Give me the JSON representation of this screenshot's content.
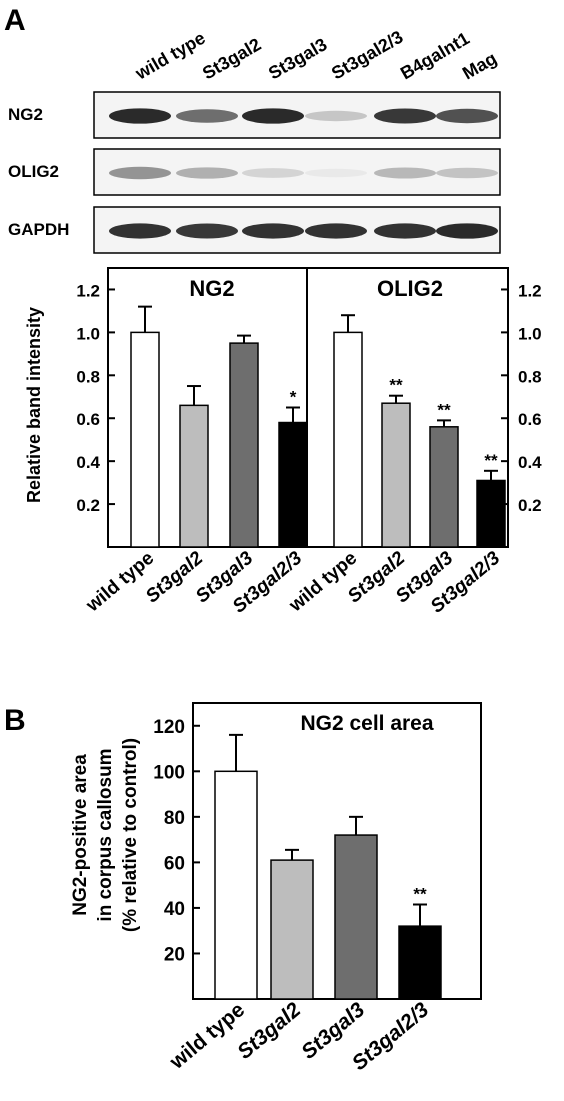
{
  "panel_a": {
    "label": "A",
    "blot": {
      "lanes": [
        "wild type",
        "St3gal2",
        "St3gal3",
        "St3gal2/3",
        "B4galnt1",
        "Mag"
      ],
      "rows": [
        {
          "label": "NG2",
          "intensity": [
            0.92,
            0.7,
            0.92,
            0.3,
            0.88,
            0.8
          ]
        },
        {
          "label": "OLIG2",
          "intensity": [
            0.55,
            0.42,
            0.22,
            0.05,
            0.38,
            0.32
          ]
        },
        {
          "label": "GAPDH",
          "intensity": [
            0.9,
            0.88,
            0.9,
            0.9,
            0.9,
            0.92
          ]
        }
      ]
    }
  },
  "panel_b": {
    "label": "B",
    "colors": {
      "wild type": "#ffffff",
      "St3gal2": "#bdbdbd",
      "St3gal3": "#6e6e6e",
      "St3gal2/3": "#000000"
    }
  },
  "chart_data": [
    {
      "type": "bar",
      "title": "NG2",
      "categories": [
        "wild type",
        "St3gal2",
        "St3gal3",
        "St3gal2/3"
      ],
      "values": [
        1.0,
        0.66,
        0.95,
        0.58
      ],
      "errors": [
        0.12,
        0.09,
        0.035,
        0.07
      ],
      "annotations": [
        "",
        "",
        "",
        "*"
      ],
      "ylabel": "Relative band intensity",
      "ylim": [
        0.0,
        1.3
      ],
      "yticks": [
        "0.2",
        "0.4",
        "0.6",
        "0.8",
        "1.0",
        "1.2"
      ],
      "grid": false
    },
    {
      "type": "bar",
      "title": "OLIG2",
      "categories": [
        "wild type",
        "St3gal2",
        "St3gal3",
        "St3gal2/3"
      ],
      "values": [
        1.0,
        0.67,
        0.56,
        0.31
      ],
      "errors": [
        0.08,
        0.035,
        0.03,
        0.045
      ],
      "annotations": [
        "",
        "**",
        "**",
        "**"
      ],
      "ylim": [
        0.0,
        1.3
      ],
      "yticks": [
        "0.2",
        "0.4",
        "0.6",
        "0.8",
        "1.0",
        "1.2"
      ],
      "grid": false
    },
    {
      "type": "bar",
      "title": "NG2 cell area",
      "categories": [
        "wild type",
        "St3gal2",
        "St3gal3",
        "St3gal2/3"
      ],
      "values": [
        100,
        61,
        72,
        32
      ],
      "errors": [
        16,
        4.5,
        8,
        9.5
      ],
      "annotations": [
        "",
        "",
        "",
        "**"
      ],
      "ylabel_lines": [
        "NG2-positive area",
        "in corpus callosum",
        "(% relative to control)"
      ],
      "ylim": [
        0,
        130
      ],
      "yticks": [
        "20",
        "40",
        "60",
        "80",
        "100",
        "120"
      ],
      "grid": false
    }
  ]
}
